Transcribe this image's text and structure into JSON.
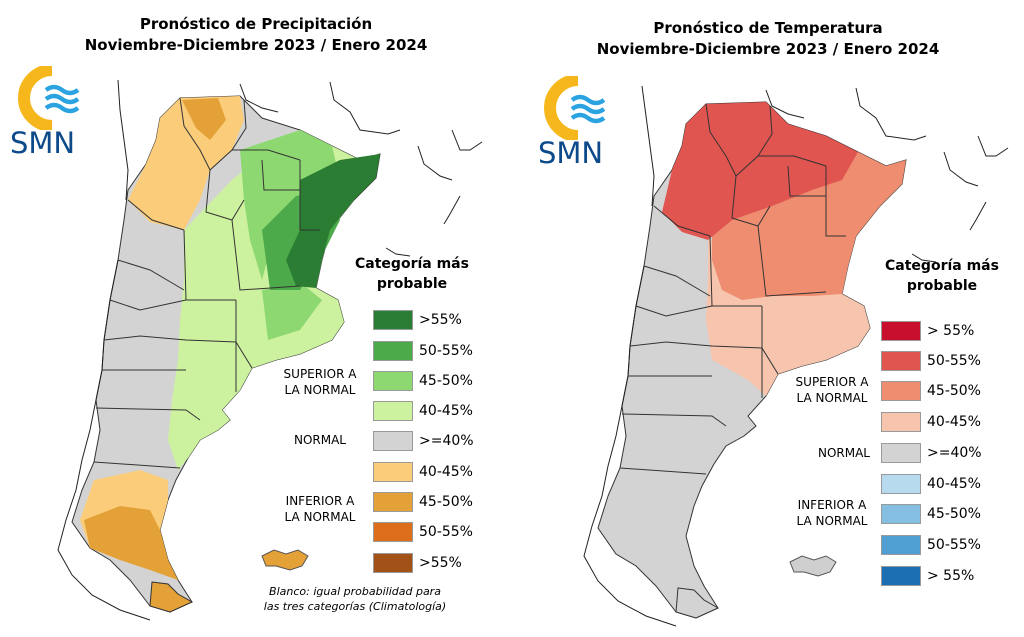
{
  "precip": {
    "title_line1": "Pronóstico de Precipitación",
    "title_line2": "Noviembre-Diciembre 2023 / Enero 2024",
    "legend_title_line1": "Categoría más",
    "legend_title_line2": "probable",
    "legend": [
      {
        "label": ">55%",
        "color": "#2a7d32"
      },
      {
        "label": "50-55%",
        "color": "#4daa4a"
      },
      {
        "label": "45-50%",
        "color": "#8ed872"
      },
      {
        "label": "40-45%",
        "color": "#cdf29f"
      },
      {
        "label": ">=40%",
        "color": "#d3d3d3"
      },
      {
        "label": "40-45%",
        "color": "#fbcd7b"
      },
      {
        "label": "45-50%",
        "color": "#e3a137"
      },
      {
        "label": "50-55%",
        "color": "#dd6f1c"
      },
      {
        "label": ">55%",
        "color": "#a35217"
      }
    ],
    "group_superior_line1": "SUPERIOR A",
    "group_superior_line2": "LA NORMAL",
    "group_normal": "NORMAL",
    "group_inferior_line1": "INFERIOR A",
    "group_inferior_line2": "LA NORMAL",
    "note_line1": "Blanco: igual probabilidad para",
    "note_line2": "las tres categorías (Climatología)"
  },
  "temp": {
    "title_line1": "Pronóstico de Temperatura",
    "title_line2": "Noviembre-Diciembre 2023 / Enero 2024",
    "legend_title_line1": "Categoría más",
    "legend_title_line2": "probable",
    "legend": [
      {
        "label": "> 55%",
        "color": "#c8102e"
      },
      {
        "label": "50-55%",
        "color": "#e05550"
      },
      {
        "label": "45-50%",
        "color": "#ee8d70"
      },
      {
        "label": "40-45%",
        "color": "#f7c5ad"
      },
      {
        "label": ">=40%",
        "color": "#d3d3d3"
      },
      {
        "label": "40-45%",
        "color": "#b7daee"
      },
      {
        "label": "45-50%",
        "color": "#84bfe2"
      },
      {
        "label": "50-55%",
        "color": "#4f9fd2"
      },
      {
        "label": "> 55%",
        "color": "#1c6fb2"
      }
    ],
    "group_superior_line1": "SUPERIOR A",
    "group_superior_line2": "LA NORMAL",
    "group_normal": "NORMAL",
    "group_inferior_line1": "INFERIOR A",
    "group_inferior_line2": "LA NORMAL"
  },
  "logo": {
    "text": "SMN",
    "ring_color": "#f6b71c",
    "wave_color": "#2aa3e0",
    "text_color": "#0d4a8a"
  }
}
